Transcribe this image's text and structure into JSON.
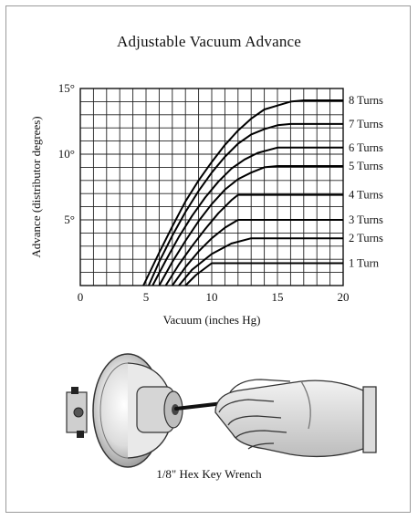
{
  "chart_data": {
    "type": "line",
    "title": "Adjustable Vacuum Advance",
    "xlabel": "Vacuum (inches Hg)",
    "ylabel": "Advance (distributor degrees)",
    "xlim": [
      0,
      20
    ],
    "ylim": [
      0,
      15
    ],
    "x_ticks": [
      {
        "value": 0,
        "label": "0"
      },
      {
        "value": 5,
        "label": "5"
      },
      {
        "value": 10,
        "label": "10"
      },
      {
        "value": 15,
        "label": "15"
      },
      {
        "value": 20,
        "label": "20"
      }
    ],
    "y_ticks": [
      {
        "value": 5,
        "label": "5°"
      },
      {
        "value": 10,
        "label": "10°"
      },
      {
        "value": 15,
        "label": "15°"
      }
    ],
    "grid": true,
    "series": [
      {
        "name": "1 Turn",
        "points": [
          [
            8,
            0
          ],
          [
            8.8,
            0.8
          ],
          [
            10,
            1.7
          ],
          [
            20,
            1.7
          ]
        ]
      },
      {
        "name": "2 Turns",
        "points": [
          [
            7.5,
            0
          ],
          [
            8.5,
            1.2
          ],
          [
            10,
            2.4
          ],
          [
            11.5,
            3.2
          ],
          [
            13,
            3.6
          ],
          [
            20,
            3.6
          ]
        ]
      },
      {
        "name": "3 Turns",
        "points": [
          [
            7,
            0
          ],
          [
            8,
            1.4
          ],
          [
            9,
            2.6
          ],
          [
            10,
            3.6
          ],
          [
            11,
            4.4
          ],
          [
            12,
            5
          ],
          [
            20,
            5
          ]
        ]
      },
      {
        "name": "4 Turns",
        "points": [
          [
            6.5,
            0
          ],
          [
            7.5,
            1.6
          ],
          [
            8.5,
            3
          ],
          [
            9.5,
            4.3
          ],
          [
            10.5,
            5.5
          ],
          [
            11.5,
            6.5
          ],
          [
            12,
            6.9
          ],
          [
            20,
            6.9
          ]
        ]
      },
      {
        "name": "5 Turns",
        "points": [
          [
            6,
            0
          ],
          [
            7,
            1.8
          ],
          [
            8,
            3.4
          ],
          [
            9,
            4.9
          ],
          [
            10,
            6.2
          ],
          [
            11,
            7.3
          ],
          [
            12,
            8.1
          ],
          [
            13,
            8.6
          ],
          [
            14,
            9
          ],
          [
            15,
            9.1
          ],
          [
            20,
            9.1
          ]
        ]
      },
      {
        "name": "6 Turns",
        "points": [
          [
            5.5,
            0
          ],
          [
            6.5,
            1.9
          ],
          [
            7.5,
            3.7
          ],
          [
            8.5,
            5.3
          ],
          [
            9.5,
            6.7
          ],
          [
            10.5,
            7.9
          ],
          [
            11.5,
            8.9
          ],
          [
            12.5,
            9.6
          ],
          [
            13.5,
            10.1
          ],
          [
            15,
            10.5
          ],
          [
            20,
            10.5
          ]
        ]
      },
      {
        "name": "7 Turns",
        "points": [
          [
            5.2,
            0
          ],
          [
            6,
            1.8
          ],
          [
            7,
            3.8
          ],
          [
            8,
            5.6
          ],
          [
            9,
            7.2
          ],
          [
            10,
            8.6
          ],
          [
            11,
            9.8
          ],
          [
            12,
            10.8
          ],
          [
            13,
            11.5
          ],
          [
            14,
            11.9
          ],
          [
            15,
            12.2
          ],
          [
            16,
            12.3
          ],
          [
            20,
            12.3
          ]
        ]
      },
      {
        "name": "8 Turns",
        "points": [
          [
            4.8,
            0
          ],
          [
            6,
            2.5
          ],
          [
            7,
            4.5
          ],
          [
            8,
            6.4
          ],
          [
            9,
            8
          ],
          [
            10,
            9.4
          ],
          [
            11,
            10.7
          ],
          [
            12,
            11.8
          ],
          [
            13,
            12.7
          ],
          [
            14,
            13.4
          ],
          [
            15,
            13.7
          ],
          [
            16,
            14
          ],
          [
            17,
            14.1
          ],
          [
            20,
            14.1
          ]
        ]
      }
    ],
    "legend_placement": "right, labels at line ends"
  },
  "illustration": {
    "caption": "1/8\" Hex Key Wrench"
  }
}
